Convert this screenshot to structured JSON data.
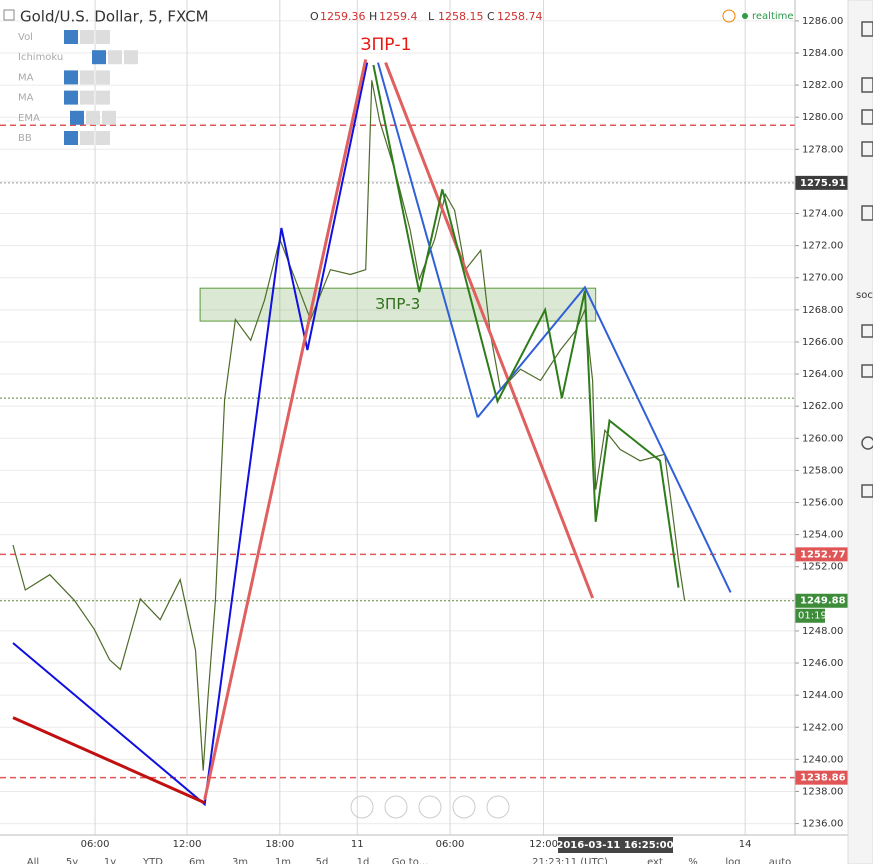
{
  "chart_data": {
    "type": "line",
    "title": "Gold/U.S. Dollar, 5, FXCM",
    "ohlc": [
      {
        "label": "O",
        "value": 1259.36
      },
      {
        "label": "H",
        "value": 1259.4
      },
      {
        "label": "L",
        "value": 1258.15
      },
      {
        "label": "C",
        "value": 1258.74
      }
    ],
    "status": "realtime",
    "indicators": [
      "Vol",
      "Ichimoku",
      "MA",
      "MA",
      "EMA",
      "BB"
    ],
    "x": [
      0,
      0.8,
      2.4,
      4.0,
      5.3,
      6.3,
      7.0,
      8.3,
      9.6,
      10.9,
      11.9,
      12.4,
      12.7,
      13.2,
      13.8,
      14.5,
      15.5,
      16.4,
      17.4,
      18.4,
      19.4,
      20.7,
      22.0,
      23.0,
      23.4,
      23.9,
      24.9,
      25.9,
      26.5,
      27.5,
      28.2,
      28.8,
      29.5,
      30.5,
      31.1,
      31.8,
      33.1,
      34.4,
      35.7,
      36.7,
      37.3,
      37.8,
      38.0,
      38.6,
      39.6,
      40.9,
      42.5,
      42.9,
      43.4,
      43.8
    ],
    "series": [
      {
        "name": "Gold/U.S. Dollar",
        "color": "#4e6b2a",
        "values": [
          1253.35,
          1250.55,
          1251.5,
          1249.9,
          1248.1,
          1246.2,
          1245.6,
          1250.0,
          1248.7,
          1251.2,
          1246.8,
          1239.3,
          1243.7,
          1249.9,
          1262.4,
          1267.4,
          1266.1,
          1268.6,
          1272.4,
          1269.9,
          1267.4,
          1270.5,
          1270.2,
          1270.5,
          1282.3,
          1279.8,
          1276.7,
          1273.0,
          1269.9,
          1272.4,
          1275.2,
          1274.2,
          1270.5,
          1271.7,
          1266.7,
          1263.0,
          1264.3,
          1263.6,
          1265.5,
          1266.7,
          1268.0,
          1263.6,
          1256.8,
          1260.5,
          1259.3,
          1258.6,
          1259.0,
          1256.2,
          1252.4,
          1249.9
        ]
      }
    ],
    "xlim": [
      -0.85,
      51
    ],
    "xticks": [
      {
        "value": 5.35,
        "label": "06:00"
      },
      {
        "value": 11.35,
        "label": "12:00"
      },
      {
        "value": 17.4,
        "label": "18:00"
      },
      {
        "value": 22.45,
        "label": "11"
      },
      {
        "value": 28.5,
        "label": "06:00"
      },
      {
        "value": 34.6,
        "label": "12:00"
      },
      {
        "value": 47.75,
        "label": "14"
      }
    ],
    "ylim": [
      1235.6,
      1287.3
    ],
    "yticks": [
      {
        "value": 1236,
        "label": "1236.00"
      },
      {
        "value": 1238,
        "label": "1238.00"
      },
      {
        "value": 1240,
        "label": "1240.00"
      },
      {
        "value": 1242,
        "label": "1242.00"
      },
      {
        "value": 1244,
        "label": "1244.00"
      },
      {
        "value": 1246,
        "label": "1246.00"
      },
      {
        "value": 1248,
        "label": "1248.00"
      },
      {
        "value": 1250,
        "label": "1250.00"
      },
      {
        "value": 1252,
        "label": "1252.00"
      },
      {
        "value": 1254,
        "label": "1254.00"
      },
      {
        "value": 1256,
        "label": "1256.00"
      },
      {
        "value": 1258,
        "label": "1258.00"
      },
      {
        "value": 1260,
        "label": "1260.00"
      },
      {
        "value": 1262,
        "label": "1262.00"
      },
      {
        "value": 1264,
        "label": "1264.00"
      },
      {
        "value": 1266,
        "label": "1266.00"
      },
      {
        "value": 1268,
        "label": "1268.00"
      },
      {
        "value": 1270,
        "label": "1270.00"
      },
      {
        "value": 1272,
        "label": "1272.00"
      },
      {
        "value": 1274,
        "label": "1274.00"
      },
      {
        "value": 1276,
        "label": "1276.00"
      },
      {
        "value": 1278,
        "label": "1278.00"
      },
      {
        "value": 1280,
        "label": "1280.00"
      },
      {
        "value": 1282,
        "label": "1282.00"
      },
      {
        "value": 1284,
        "label": "1284.00"
      },
      {
        "value": 1286,
        "label": "1286.00"
      }
    ],
    "grid": true,
    "levels": [
      {
        "value": 1279.5,
        "color": "#e05555",
        "dash": "6,4"
      },
      {
        "value": 1275.91,
        "color": "#999999",
        "dash": "2,2",
        "tag_color": "#3c3c3c"
      },
      {
        "value": 1262.5,
        "color": "#5a8a3a",
        "dash": "2,2"
      },
      {
        "value": 1252.77,
        "color": "#e05555",
        "dash": "6,4",
        "tag_color": "#e05555"
      },
      {
        "value": 1249.88,
        "color": "#5a8a3a",
        "dash": "2,2",
        "tag_color": "#3d8c3a"
      },
      {
        "value": 1238.86,
        "color": "#e05555",
        "dash": "6,4",
        "tag_color": "#e05555"
      }
    ],
    "countdown": "01:19",
    "cursor_time": "2016-03-11 16:25:00",
    "zone": {
      "label": "ЗПР-3",
      "x": [
        12.2,
        38.0
      ],
      "y": [
        1267.3,
        1269.35
      ],
      "color": "#5a9a3a"
    },
    "annotations": [
      {
        "text": "ЗПР-1",
        "color": "#e8170f"
      }
    ],
    "drawings": [
      {
        "color": "#1010e0",
        "width": 2,
        "points": [
          [
            0,
            1247.25
          ],
          [
            12.5,
            1237.2
          ],
          [
            17.5,
            1273.1
          ],
          [
            19.2,
            1265.5
          ],
          [
            23.1,
            1283.4
          ]
        ]
      },
      {
        "color": "#c01010",
        "width": 3,
        "points": [
          [
            0,
            1242.6
          ],
          [
            12.5,
            1237.3
          ]
        ]
      },
      {
        "color": "#e06060",
        "width": 3,
        "points": [
          [
            12.5,
            1237.5
          ],
          [
            23.0,
            1283.6
          ]
        ]
      },
      {
        "color": "#e06060",
        "width": 3,
        "points": [
          [
            24.3,
            1283.4
          ],
          [
            37.8,
            1250.05
          ]
        ]
      },
      {
        "color": "#3060d8",
        "width": 2,
        "points": [
          [
            23.8,
            1283.4
          ],
          [
            30.3,
            1261.3
          ]
        ]
      },
      {
        "color": "#3060d8",
        "width": 2,
        "points": [
          [
            30.3,
            1261.3
          ],
          [
            37.3,
            1269.4
          ],
          [
            46.8,
            1250.4
          ]
        ]
      },
      {
        "color": "#2e7d1a",
        "width": 2,
        "points": [
          [
            23.5,
            1283.25
          ],
          [
            26.5,
            1269.1
          ],
          [
            28.0,
            1275.5
          ],
          [
            31.6,
            1262.3
          ],
          [
            34.7,
            1268.0
          ],
          [
            35.8,
            1262.5
          ],
          [
            37.3,
            1269.2
          ],
          [
            38.0,
            1254.8
          ],
          [
            38.9,
            1261.1
          ],
          [
            42.2,
            1258.6
          ],
          [
            43.4,
            1250.7
          ]
        ]
      }
    ]
  },
  "ui": {
    "toolbar": [
      "All",
      "5y",
      "1y",
      "YTD",
      "6m",
      "3m",
      "1m",
      "5d",
      "1d",
      "Go to...",
      "21:23:11 (UTC)",
      "ext",
      "%",
      "log",
      "auto"
    ],
    "sidebar_text": "soc"
  }
}
